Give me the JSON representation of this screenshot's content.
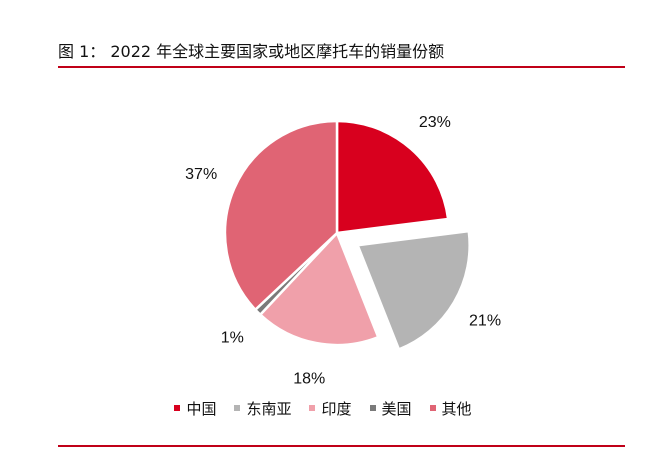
{
  "figure": {
    "title": "图 1： 2022 年全球主要国家或地区摩托车的销量份额"
  },
  "chart_data": {
    "type": "pie",
    "title": "",
    "slices": [
      {
        "name": "中国",
        "value": 23,
        "label": "23%",
        "color": "#d8001e",
        "exploded": false
      },
      {
        "name": "东南亚",
        "value": 21,
        "label": "21%",
        "color": "#b4b4b4",
        "exploded": true
      },
      {
        "name": "印度",
        "value": 18,
        "label": "18%",
        "color": "#f0a0aa",
        "exploded": false
      },
      {
        "name": "美国",
        "value": 1,
        "label": "1%",
        "color": "#7a7a7a",
        "exploded": false
      },
      {
        "name": "其他",
        "value": 37,
        "label": "37%",
        "color": "#e06474",
        "exploded": false
      }
    ],
    "legend_position": "bottom"
  }
}
